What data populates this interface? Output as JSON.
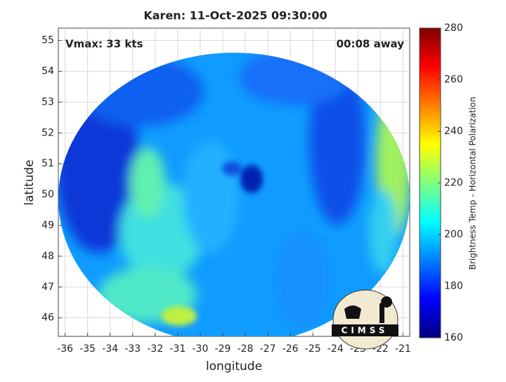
{
  "chart_data": {
    "type": "image",
    "title": "Karen: 11-Oct-2025 09:30:00",
    "annotations": [
      "Vmax: 33 kts",
      "00:08 away"
    ],
    "xlabel": "longitude",
    "ylabel": "latitude",
    "xlim": [
      -36.3,
      -20.7
    ],
    "ylim": [
      45.4,
      55.4
    ],
    "xticks": [
      -36,
      -35,
      -34,
      -33,
      -32,
      -31,
      -30,
      -29,
      -28,
      -27,
      -26,
      -25,
      -24,
      -23,
      -22,
      -21
    ],
    "yticks": [
      46,
      47,
      48,
      49,
      50,
      51,
      52,
      53,
      54,
      55
    ],
    "grid": true,
    "colorbar": {
      "label": "Brightness Temp - Horizontal Polarization",
      "colormap": "jet",
      "clim": [
        160,
        280
      ],
      "ticks": [
        160,
        180,
        200,
        220,
        240,
        260,
        280
      ]
    },
    "logo_text": "CIMSS"
  }
}
